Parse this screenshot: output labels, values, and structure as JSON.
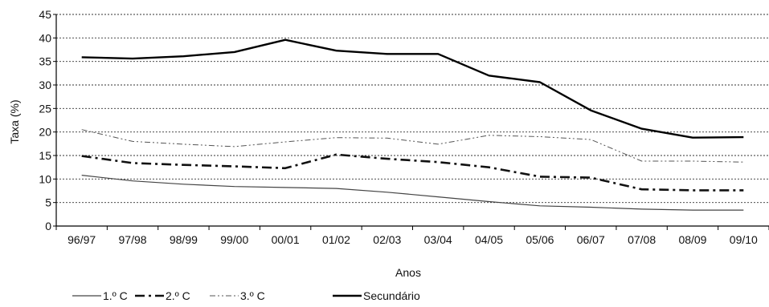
{
  "chart_data": {
    "type": "line",
    "title": "",
    "xlabel": "Anos",
    "ylabel": "Taxa (%)",
    "ylim": [
      0,
      45
    ],
    "yticks": [
      0,
      5,
      10,
      15,
      20,
      25,
      30,
      35,
      40,
      45
    ],
    "grid": true,
    "legend_position": "bottom-left",
    "categories": [
      "96/97",
      "97/98",
      "98/99",
      "99/00",
      "00/01",
      "01/02",
      "02/03",
      "03/04",
      "04/05",
      "05/06",
      "06/07",
      "07/08",
      "08/09",
      "09/10"
    ],
    "series": [
      {
        "name": "1.º C",
        "style": "thin-solid",
        "color": "#444444",
        "values": [
          10.8,
          9.6,
          8.9,
          8.4,
          8.2,
          8.0,
          7.2,
          6.2,
          5.2,
          4.3,
          4.0,
          3.6,
          3.4,
          3.4
        ]
      },
      {
        "name": "2.º C",
        "style": "thick-dash-dot",
        "color": "#111111",
        "values": [
          14.9,
          13.4,
          13.0,
          12.7,
          12.3,
          15.2,
          14.3,
          13.6,
          12.5,
          10.5,
          10.3,
          7.8,
          7.6,
          7.6
        ]
      },
      {
        "name": "3.º C",
        "style": "thin-dash-dot-dot",
        "color": "#555555",
        "values": [
          20.5,
          18.0,
          17.4,
          16.9,
          17.9,
          18.8,
          18.7,
          17.4,
          19.3,
          19.0,
          18.4,
          13.8,
          13.8,
          13.6
        ]
      },
      {
        "name": "Secundário",
        "style": "thick-solid",
        "color": "#000000",
        "values": [
          35.9,
          35.6,
          36.1,
          37.0,
          39.6,
          37.3,
          36.6,
          36.6,
          32.0,
          30.6,
          24.6,
          20.7,
          18.8,
          18.9
        ]
      }
    ]
  }
}
